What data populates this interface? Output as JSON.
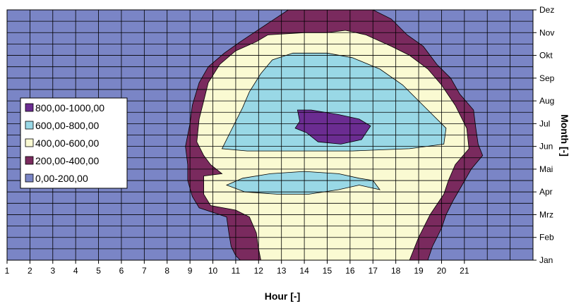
{
  "chart_data": {
    "type": "heatmap",
    "subtype": "filled-contour",
    "xlabel": "Hour [-]",
    "ylabel": "Month [-]",
    "x_ticks": [
      "1",
      "2",
      "3",
      "4",
      "5",
      "6",
      "7",
      "8",
      "9",
      "10",
      "11",
      "12",
      "13",
      "14",
      "15",
      "16",
      "17",
      "18",
      "19",
      "20",
      "21"
    ],
    "y_ticks": [
      "Jan",
      "Feb",
      "Mrz",
      "Apr",
      "Mai",
      "Jun",
      "Jul",
      "Aug",
      "Sep",
      "Okt",
      "Nov",
      "Dez"
    ],
    "grid": true,
    "legend_position": "left",
    "legend": [
      {
        "label": "800,00-1000,00",
        "color": "#6b2c91"
      },
      {
        "label": "600,00-800,00",
        "color": "#99d8e6"
      },
      {
        "label": "400,00-600,00",
        "color": "#fafad2"
      },
      {
        "label": "200,00-400,00",
        "color": "#7a2a5e"
      },
      {
        "label": "0,00-200,00",
        "color": "#7a85c6"
      }
    ],
    "background_color": "#7a85c6",
    "contours": [
      {
        "range": "200,00-400,00",
        "color": "#7a2a5e",
        "points": [
          [
            11.2,
            1
          ],
          [
            11,
            1.2
          ],
          [
            10.8,
            1.6
          ],
          [
            10.7,
            2.2
          ],
          [
            10.6,
            2.9
          ],
          [
            9.4,
            3.3
          ],
          [
            9.1,
            3.8
          ],
          [
            8.9,
            4.5
          ],
          [
            8.9,
            5.2
          ],
          [
            8.8,
            6
          ],
          [
            9,
            7
          ],
          [
            9.1,
            7.8
          ],
          [
            9.4,
            8.8
          ],
          [
            9.8,
            9.5
          ],
          [
            10.5,
            10.1
          ],
          [
            11.2,
            10.6
          ],
          [
            12.1,
            11.2
          ],
          [
            13.3,
            12
          ],
          [
            17,
            12
          ],
          [
            17.8,
            11.6
          ],
          [
            18.5,
            10.9
          ],
          [
            19.2,
            10.4
          ],
          [
            19.8,
            9.6
          ],
          [
            20.4,
            9
          ],
          [
            20.8,
            8.3
          ],
          [
            21.4,
            7.6
          ],
          [
            21.5,
            6.8
          ],
          [
            21.6,
            6.1
          ],
          [
            21.8,
            5.6
          ],
          [
            21.3,
            5
          ],
          [
            20.9,
            4.3
          ],
          [
            20.5,
            3.6
          ],
          [
            20.2,
            3
          ],
          [
            20,
            2.4
          ],
          [
            19.6,
            1.6
          ],
          [
            19.4,
            1
          ]
        ]
      },
      {
        "range": "400,00-600,00",
        "color": "#fafad2",
        "points": [
          [
            12.1,
            1
          ],
          [
            12,
            1.5
          ],
          [
            11.9,
            2.2
          ],
          [
            11.6,
            2.9
          ],
          [
            11,
            3.2
          ],
          [
            9.9,
            3.4
          ],
          [
            9.6,
            3.9
          ],
          [
            9.6,
            4.7
          ],
          [
            10.4,
            4.8
          ],
          [
            9.9,
            5.2
          ],
          [
            9.6,
            5.6
          ],
          [
            9.3,
            6.2
          ],
          [
            9.4,
            7.2
          ],
          [
            9.6,
            8
          ],
          [
            9.8,
            8.8
          ],
          [
            10.3,
            9.6
          ],
          [
            11,
            10.2
          ],
          [
            11.9,
            10.6
          ],
          [
            12.4,
            10.9
          ],
          [
            14,
            11
          ],
          [
            15,
            11
          ],
          [
            15.8,
            11.1
          ],
          [
            16.7,
            10.9
          ],
          [
            17.8,
            10.4
          ],
          [
            18.6,
            10
          ],
          [
            19.4,
            9.4
          ],
          [
            20,
            8.7
          ],
          [
            20.6,
            7.8
          ],
          [
            21.1,
            6.8
          ],
          [
            21.2,
            5.9
          ],
          [
            20.6,
            5.2
          ],
          [
            20.3,
            4.5
          ],
          [
            20.1,
            3.9
          ],
          [
            19.5,
            3
          ],
          [
            19,
            2
          ],
          [
            18.6,
            1
          ]
        ]
      },
      {
        "range": "600,00-800,00",
        "color": "#99d8e6",
        "points": [
          [
            10.4,
            5.9
          ],
          [
            10.8,
            6.7
          ],
          [
            11.3,
            7.7
          ],
          [
            11.6,
            8.4
          ],
          [
            12.1,
            9.2
          ],
          [
            12.6,
            9.8
          ],
          [
            13.5,
            10.1
          ],
          [
            15,
            10.1
          ],
          [
            16.1,
            9.9
          ],
          [
            17.3,
            9.4
          ],
          [
            18.3,
            8.7
          ],
          [
            18.9,
            8.1
          ],
          [
            19.6,
            7.4
          ],
          [
            20.2,
            6.8
          ],
          [
            20.1,
            6.1
          ],
          [
            18.6,
            5.9
          ],
          [
            16.1,
            5.8
          ],
          [
            13.4,
            5.8
          ],
          [
            11.5,
            5.8
          ]
        ]
      },
      {
        "range": "600,00-800,00",
        "color": "#99d8e6",
        "points": [
          [
            10.6,
            4.3
          ],
          [
            11.3,
            4.6
          ],
          [
            12.5,
            4.8
          ],
          [
            14,
            4.9
          ],
          [
            15.5,
            4.8
          ],
          [
            16.4,
            4.6
          ],
          [
            17,
            4.5
          ],
          [
            17.3,
            4.1
          ],
          [
            16.4,
            4.3
          ],
          [
            15.5,
            4.1
          ],
          [
            14.2,
            3.9
          ],
          [
            12.8,
            3.9
          ],
          [
            11.4,
            4
          ]
        ]
      },
      {
        "range": "800,00-1000,00",
        "color": "#6b2c91",
        "points": [
          [
            13.7,
            7.6
          ],
          [
            14.3,
            7.6
          ],
          [
            15.5,
            7.4
          ],
          [
            16.4,
            7.2
          ],
          [
            16.9,
            6.9
          ],
          [
            16.7,
            6.6
          ],
          [
            16.5,
            6.3
          ],
          [
            15.6,
            6.1
          ],
          [
            14.6,
            6.2
          ],
          [
            14.1,
            6.6
          ],
          [
            13.6,
            6.8
          ],
          [
            13.8,
            7.1
          ]
        ]
      }
    ]
  }
}
